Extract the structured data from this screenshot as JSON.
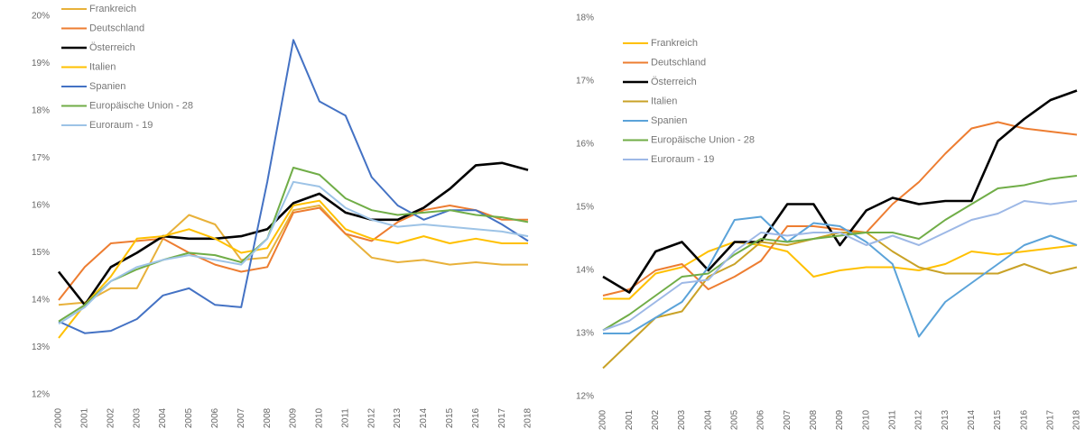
{
  "chart_data": [
    {
      "type": "line",
      "categories": [
        "2000",
        "2001",
        "2002",
        "2003",
        "2004",
        "2005",
        "2006",
        "2007",
        "2008",
        "2009",
        "2010",
        "2011",
        "2012",
        "2013",
        "2014",
        "2015",
        "2016",
        "2017",
        "2018"
      ],
      "ylim": [
        12,
        20
      ],
      "yticks": [
        {
          "value": 12,
          "label": "12%"
        },
        {
          "value": 13,
          "label": "13%"
        },
        {
          "value": 14,
          "label": "14%"
        },
        {
          "value": 15,
          "label": "15%"
        },
        {
          "value": 16,
          "label": "16%"
        },
        {
          "value": 17,
          "label": "17%"
        },
        {
          "value": 18,
          "label": "18%"
        },
        {
          "value": 19,
          "label": "19%"
        },
        {
          "value": 20,
          "label": "20%"
        }
      ],
      "series": [
        {
          "name": "Frankreich",
          "color": "#e8b13a",
          "values": [
            13.9,
            13.95,
            14.25,
            14.25,
            15.3,
            15.8,
            15.6,
            14.85,
            14.9,
            15.9,
            16.0,
            15.4,
            14.9,
            14.8,
            14.85,
            14.75,
            14.8,
            14.75,
            14.75
          ]
        },
        {
          "name": "Deutschland",
          "color": "#ed7d31",
          "values": [
            14.0,
            14.7,
            15.2,
            15.25,
            15.3,
            15.0,
            14.75,
            14.6,
            14.7,
            15.85,
            15.95,
            15.4,
            15.25,
            15.65,
            15.9,
            16.0,
            15.9,
            15.7,
            15.7
          ]
        },
        {
          "name": "Österreich",
          "color": "#000000",
          "values": [
            14.6,
            13.9,
            14.7,
            15.0,
            15.35,
            15.3,
            15.3,
            15.35,
            15.5,
            16.05,
            16.25,
            15.85,
            15.7,
            15.7,
            15.95,
            16.35,
            16.85,
            16.9,
            16.75
          ]
        },
        {
          "name": "Italien",
          "color": "#ffc000",
          "values": [
            13.2,
            13.9,
            14.5,
            15.3,
            15.35,
            15.5,
            15.3,
            15.0,
            15.1,
            16.0,
            16.1,
            15.5,
            15.3,
            15.2,
            15.35,
            15.2,
            15.3,
            15.2,
            15.2
          ]
        },
        {
          "name": "Spanien",
          "color": "#4472c4",
          "values": [
            13.55,
            13.3,
            13.35,
            13.6,
            14.1,
            14.25,
            13.9,
            13.85,
            16.5,
            19.5,
            18.2,
            17.9,
            16.6,
            16.0,
            15.7,
            15.9,
            15.9,
            15.6,
            15.25
          ]
        },
        {
          "name": "Europäische Union - 28",
          "color": "#70ad47",
          "values": [
            13.55,
            13.9,
            14.4,
            14.65,
            14.85,
            15.0,
            14.95,
            14.8,
            15.3,
            16.8,
            16.65,
            16.15,
            15.9,
            15.8,
            15.85,
            15.9,
            15.8,
            15.75,
            15.65
          ]
        },
        {
          "name": "Euroraum - 19",
          "color": "#9dc3e6",
          "values": [
            13.5,
            13.85,
            14.4,
            14.7,
            14.85,
            14.95,
            14.85,
            14.75,
            15.3,
            16.5,
            16.4,
            15.95,
            15.7,
            15.55,
            15.6,
            15.55,
            15.5,
            15.45,
            15.35
          ]
        }
      ]
    },
    {
      "type": "line",
      "categories": [
        "2000",
        "2001",
        "2002",
        "2003",
        "2004",
        "2005",
        "2006",
        "2007",
        "2008",
        "2009",
        "2010",
        "2011",
        "2012",
        "2013",
        "2014",
        "2015",
        "2016",
        "2017",
        "2018"
      ],
      "ylim": [
        12,
        18
      ],
      "yticks": [
        {
          "value": 12,
          "label": "12%"
        },
        {
          "value": 13,
          "label": "13%"
        },
        {
          "value": 14,
          "label": "14%"
        },
        {
          "value": 15,
          "label": "15%"
        },
        {
          "value": 16,
          "label": "16%"
        },
        {
          "value": 17,
          "label": "17%"
        },
        {
          "value": 18,
          "label": "18%"
        }
      ],
      "series": [
        {
          "name": "Frankreich",
          "color": "#ffc000",
          "values": [
            13.55,
            13.55,
            13.95,
            14.05,
            14.3,
            14.45,
            14.4,
            14.3,
            13.9,
            14.0,
            14.05,
            14.05,
            14.0,
            14.1,
            14.3,
            14.25,
            14.3,
            14.35,
            14.4
          ]
        },
        {
          "name": "Deutschland",
          "color": "#ed7d31",
          "values": [
            13.6,
            13.7,
            14.0,
            14.1,
            13.7,
            13.9,
            14.15,
            14.7,
            14.7,
            14.65,
            14.6,
            15.05,
            15.4,
            15.85,
            16.25,
            16.35,
            16.25,
            16.2,
            16.15
          ]
        },
        {
          "name": "Österreich",
          "color": "#000000",
          "values": [
            13.9,
            13.65,
            14.3,
            14.45,
            14.0,
            14.45,
            14.45,
            15.05,
            15.05,
            14.4,
            14.95,
            15.15,
            15.05,
            15.1,
            15.1,
            16.05,
            16.4,
            16.7,
            16.85
          ]
        },
        {
          "name": "Italien",
          "color": "#c9a227",
          "values": [
            12.45,
            12.85,
            13.25,
            13.35,
            13.9,
            14.1,
            14.45,
            14.4,
            14.5,
            14.6,
            14.6,
            14.3,
            14.05,
            13.95,
            13.95,
            13.95,
            14.1,
            13.95,
            14.05
          ]
        },
        {
          "name": "Spanien",
          "color": "#5ba3d9",
          "values": [
            13.0,
            13.0,
            13.25,
            13.5,
            14.05,
            14.8,
            14.85,
            14.45,
            14.75,
            14.7,
            14.45,
            14.1,
            12.95,
            13.5,
            13.8,
            14.1,
            14.4,
            14.55,
            14.4
          ]
        },
        {
          "name": "Europäische Union - 28",
          "color": "#70ad47",
          "values": [
            13.05,
            13.3,
            13.6,
            13.9,
            13.95,
            14.25,
            14.5,
            14.45,
            14.5,
            14.55,
            14.6,
            14.6,
            14.5,
            14.8,
            15.05,
            15.3,
            15.35,
            15.45,
            15.5
          ]
        },
        {
          "name": "Euroraum - 19",
          "color": "#9db8e6",
          "values": [
            13.05,
            13.2,
            13.5,
            13.8,
            13.85,
            14.3,
            14.6,
            14.55,
            14.6,
            14.6,
            14.4,
            14.55,
            14.4,
            14.6,
            14.8,
            14.9,
            15.1,
            15.05,
            15.1
          ]
        }
      ]
    }
  ]
}
